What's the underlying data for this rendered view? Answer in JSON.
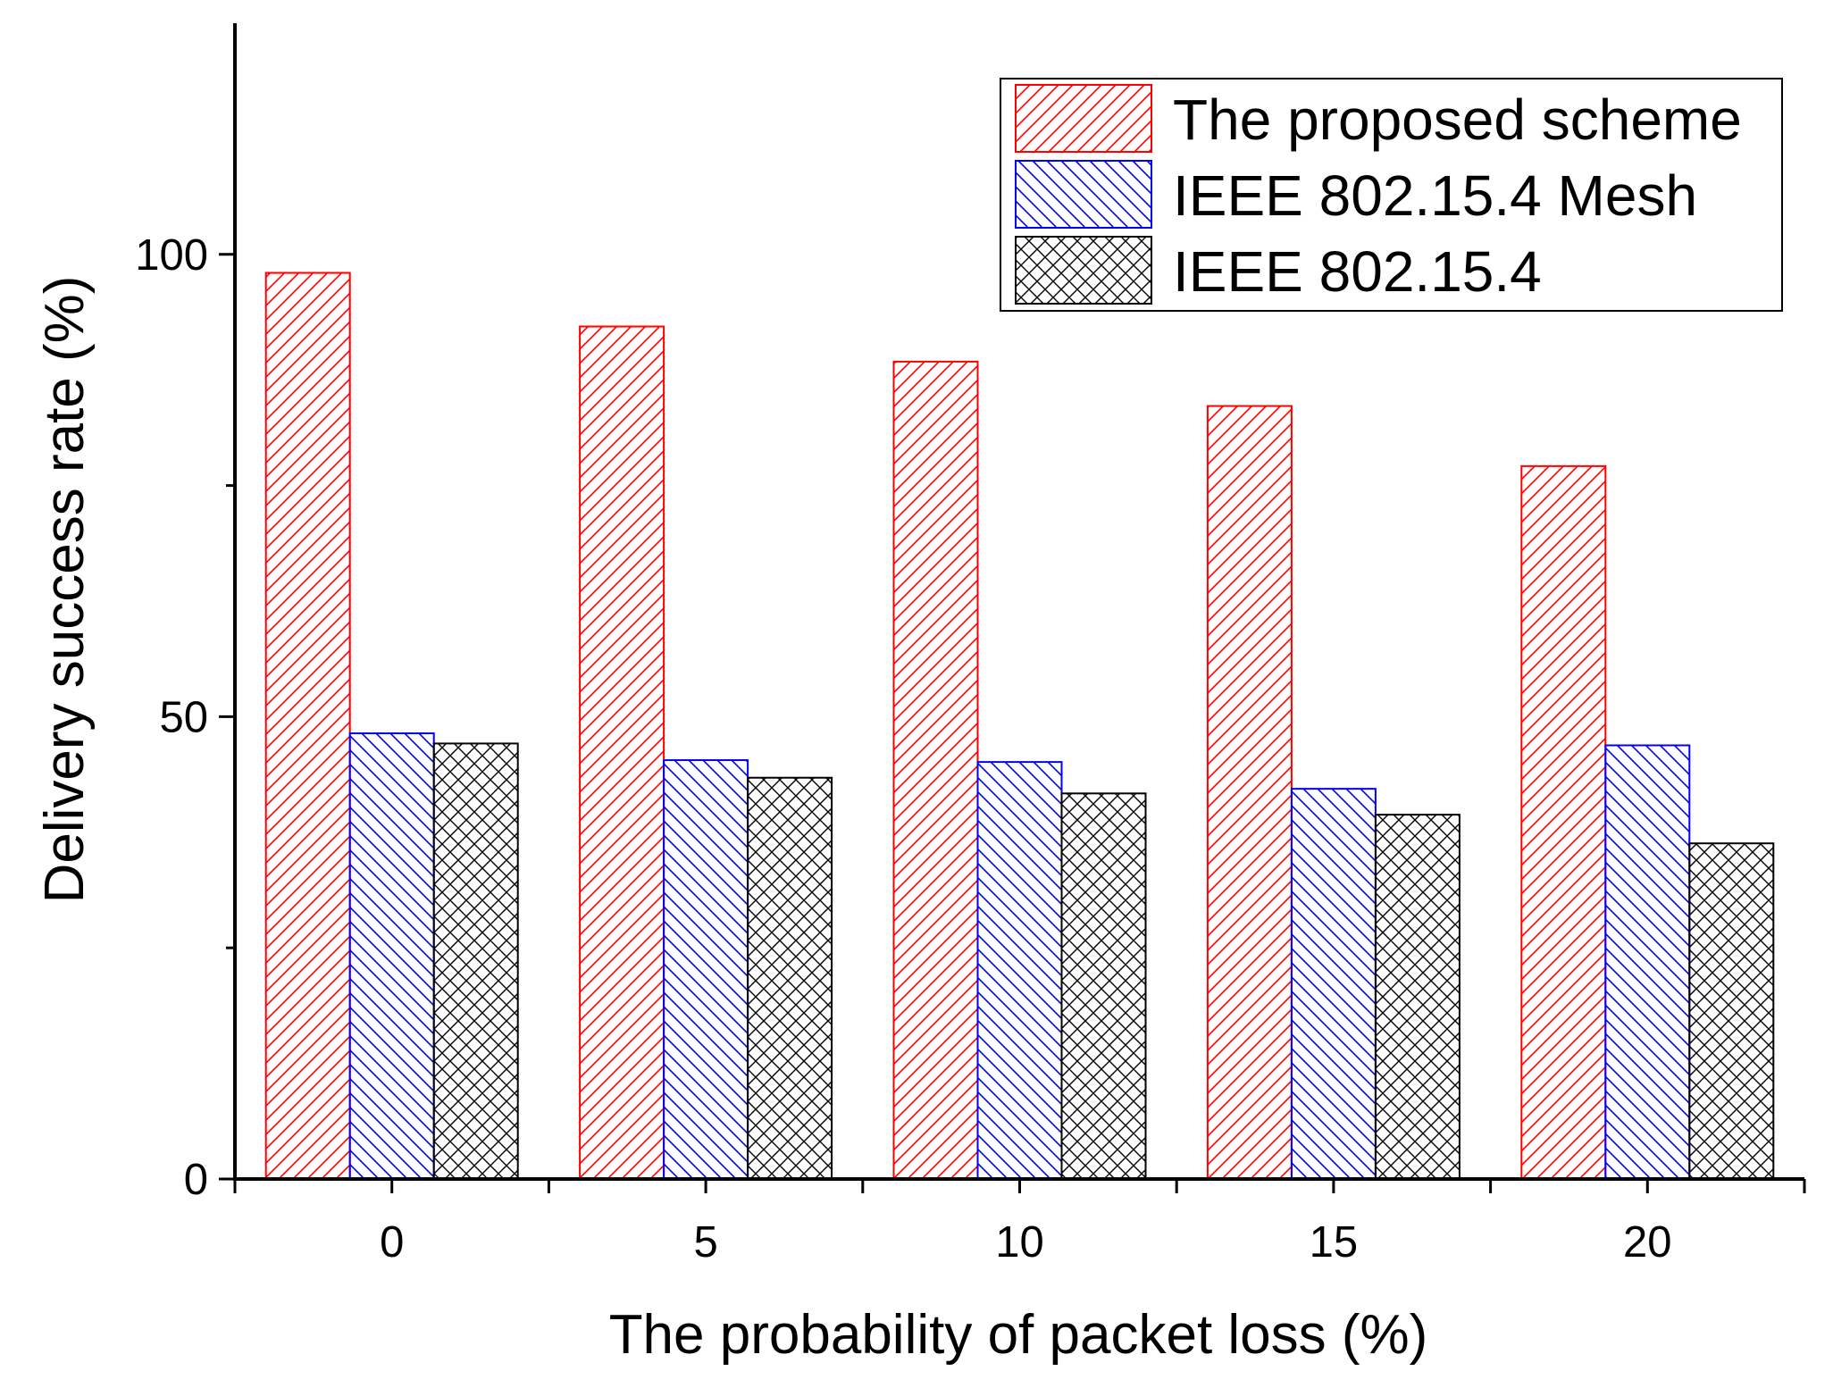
{
  "chart_data": {
    "type": "bar",
    "title": "",
    "xlabel": "The probability of packet loss (%)",
    "ylabel": "Delivery success rate (%)",
    "categories": [
      "0",
      "5",
      "10",
      "15",
      "20"
    ],
    "ylim": [
      0,
      125
    ],
    "yticks": [
      0,
      50,
      100
    ],
    "yticks_minor": [
      25,
      75
    ],
    "ytick_labels": [
      "0",
      "50",
      "100"
    ],
    "grid": false,
    "legend_position": "top-right",
    "series": [
      {
        "name": "The proposed scheme",
        "color": "#ff0000",
        "pattern": "diagonal-forward",
        "values": [
          98,
          92.2,
          88.4,
          83.6,
          77.1
        ]
      },
      {
        "name": "IEEE 802.15.4 Mesh",
        "color": "#0000ff",
        "pattern": "diagonal-backward",
        "values": [
          48.2,
          45.3,
          45.1,
          42.2,
          46.9
        ]
      },
      {
        "name": "IEEE 802.15.4",
        "color": "#000000",
        "pattern": "crosshatch",
        "values": [
          47.1,
          43.4,
          41.7,
          39.4,
          36.3
        ]
      }
    ]
  }
}
